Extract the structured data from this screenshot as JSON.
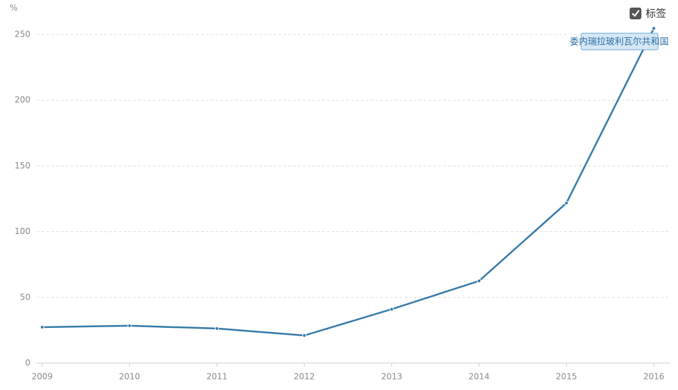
{
  "chart_data": {
    "type": "line",
    "y_label": "%",
    "label_toggle": "标签",
    "categories": [
      "2009",
      "2010",
      "2011",
      "2012",
      "2013",
      "2014",
      "2015",
      "2016"
    ],
    "series": [
      {
        "name": "委内瑞拉玻利瓦尔共和国",
        "color": "#3278a8",
        "values": [
          27.3,
          28.4,
          26.3,
          21.0,
          41.0,
          62.5,
          121.8,
          254.7
        ]
      }
    ],
    "ylim": [
      0,
      260
    ],
    "yticks": [
      0,
      50,
      100,
      150,
      200,
      250
    ],
    "grid": true
  }
}
